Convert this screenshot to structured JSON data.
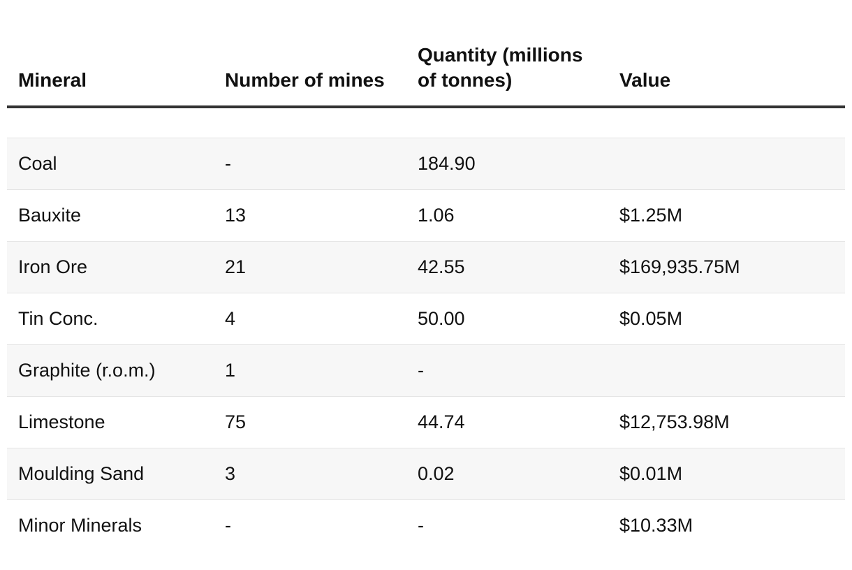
{
  "table": {
    "headers": {
      "mineral": "Mineral",
      "mines": "Number of mines",
      "quantity": "Quantity (millions of tonnes)",
      "value": "Value"
    },
    "rows": [
      {
        "mineral": "Coal",
        "mines": "-",
        "quantity": "184.90",
        "value": ""
      },
      {
        "mineral": "Bauxite",
        "mines": "13",
        "quantity": "1.06",
        "value": "$1.25M"
      },
      {
        "mineral": "Iron Ore",
        "mines": "21",
        "quantity": "42.55",
        "value": "$169,935.75M"
      },
      {
        "mineral": "Tin Conc.",
        "mines": "4",
        "quantity": "50.00",
        "value": "$0.05M"
      },
      {
        "mineral": "Graphite (r.o.m.)",
        "mines": "1",
        "quantity": "-",
        "value": ""
      },
      {
        "mineral": "Limestone",
        "mines": "75",
        "quantity": "44.74",
        "value": "$12,753.98M"
      },
      {
        "mineral": "Moulding Sand",
        "mines": "3",
        "quantity": "0.02",
        "value": "$0.01M"
      },
      {
        "mineral": "Minor Minerals",
        "mines": "-",
        "quantity": "-",
        "value": "$10.33M"
      }
    ]
  }
}
